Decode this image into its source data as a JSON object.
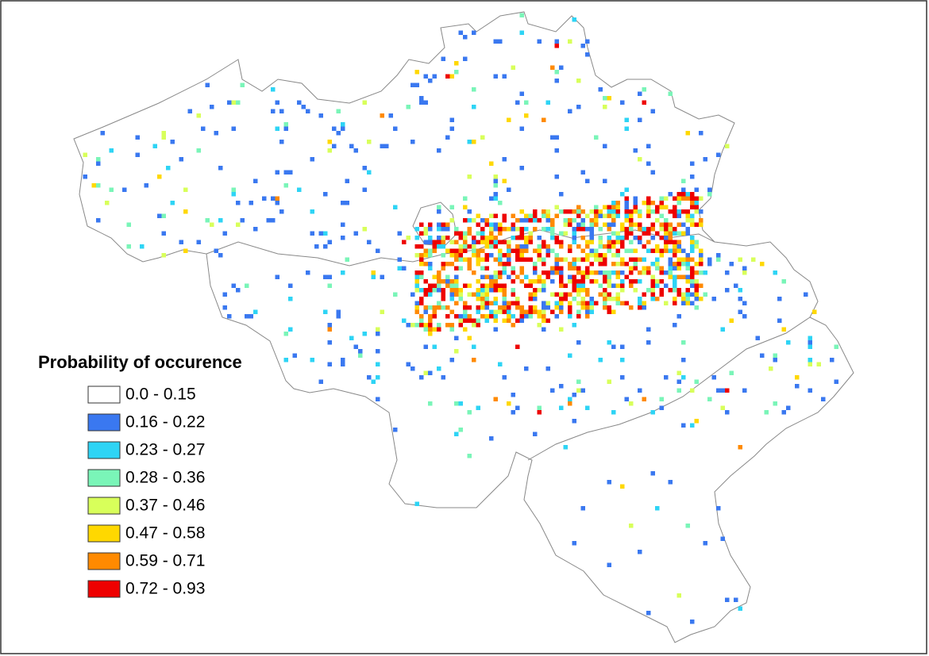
{
  "legend": {
    "title": "Probability of occurence",
    "items": [
      {
        "label": "0.0 - 0.15",
        "color": "#ffffff"
      },
      {
        "label": "0.16 - 0.22",
        "color": "#3a78f0"
      },
      {
        "label": "0.23 - 0.27",
        "color": "#2ed4f5"
      },
      {
        "label": "0.28 - 0.36",
        "color": "#7af5b8"
      },
      {
        "label": "0.37 - 0.46",
        "color": "#d8ff5a"
      },
      {
        "label": "0.47 - 0.58",
        "color": "#ffd800"
      },
      {
        "label": "0.59 - 0.71",
        "color": "#ff8a00"
      },
      {
        "label": "0.72 - 0.93",
        "color": "#ee0000"
      }
    ]
  }
}
